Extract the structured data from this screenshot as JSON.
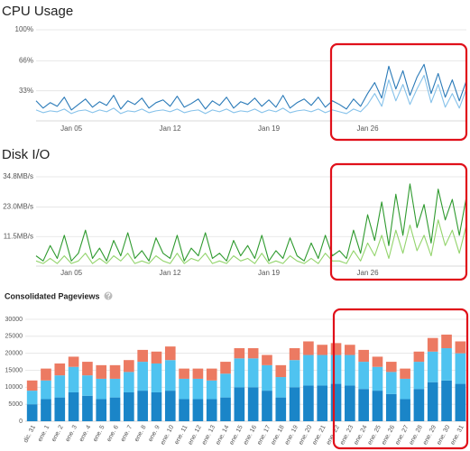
{
  "chart_data": [
    {
      "type": "line",
      "title": "CPU Usage",
      "categories": [
        null,
        null,
        null,
        null,
        null,
        "Jan 05",
        null,
        null,
        null,
        null,
        null,
        null,
        null,
        null,
        null,
        null,
        null,
        null,
        null,
        "Jan 12",
        null,
        null,
        null,
        null,
        null,
        null,
        null,
        null,
        null,
        null,
        null,
        null,
        null,
        "Jan 19",
        null,
        null,
        null,
        null,
        null,
        null,
        null,
        null,
        null,
        null,
        null,
        null,
        null,
        "Jan 26",
        null,
        null,
        null,
        null,
        null,
        null,
        null,
        null,
        null,
        null,
        null,
        null,
        null,
        null
      ],
      "series": [
        {
          "color": "#2a7ab8",
          "values": [
            22,
            14,
            20,
            16,
            26,
            12,
            18,
            24,
            15,
            21,
            17,
            28,
            13,
            22,
            18,
            25,
            14,
            20,
            23,
            16,
            27,
            15,
            19,
            24,
            13,
            22,
            17,
            26,
            14,
            21,
            18,
            25,
            16,
            23,
            15,
            28,
            14,
            20,
            24,
            17,
            26,
            15,
            22,
            18,
            13,
            24,
            16,
            30,
            42,
            25,
            60,
            35,
            55,
            28,
            48,
            62,
            30,
            52,
            26,
            45,
            22,
            44
          ]
        },
        {
          "color": "#86c2ea",
          "values": [
            12,
            9,
            11,
            10,
            13,
            8,
            11,
            12,
            9,
            12,
            10,
            14,
            8,
            11,
            10,
            13,
            9,
            11,
            12,
            10,
            13,
            9,
            11,
            12,
            8,
            12,
            10,
            13,
            9,
            11,
            10,
            13,
            9,
            12,
            10,
            14,
            9,
            11,
            12,
            10,
            13,
            9,
            12,
            10,
            8,
            13,
            10,
            18,
            30,
            16,
            45,
            22,
            40,
            18,
            35,
            50,
            20,
            40,
            15,
            30,
            14,
            35
          ]
        }
      ],
      "ylim": [
        0,
        100
      ],
      "yticks": [
        {
          "value": 33,
          "label": "33%"
        },
        {
          "value": 66,
          "label": "66%"
        },
        {
          "value": 100,
          "label": "100%"
        }
      ],
      "grid": true
    },
    {
      "type": "line",
      "title": "Disk I/O",
      "categories": [
        null,
        null,
        null,
        null,
        null,
        "Jan 05",
        null,
        null,
        null,
        null,
        null,
        null,
        null,
        null,
        null,
        null,
        null,
        null,
        null,
        "Jan 12",
        null,
        null,
        null,
        null,
        null,
        null,
        null,
        null,
        null,
        null,
        null,
        null,
        null,
        "Jan 19",
        null,
        null,
        null,
        null,
        null,
        null,
        null,
        null,
        null,
        null,
        null,
        null,
        null,
        "Jan 26",
        null,
        null,
        null,
        null,
        null,
        null,
        null,
        null,
        null,
        null,
        null,
        null,
        null,
        null
      ],
      "series": [
        {
          "color": "#2e9a2e",
          "values": [
            4,
            2,
            8,
            3,
            12,
            2,
            5,
            14,
            3,
            7,
            2,
            10,
            4,
            13,
            3,
            6,
            2,
            11,
            5,
            3,
            12,
            2,
            7,
            4,
            13,
            3,
            5,
            2,
            10,
            4,
            8,
            3,
            12,
            2,
            6,
            3,
            11,
            4,
            2,
            9,
            3,
            12,
            4,
            6,
            3,
            14,
            5,
            20,
            10,
            25,
            8,
            28,
            12,
            32,
            15,
            24,
            9,
            30,
            18,
            26,
            12,
            27
          ]
        },
        {
          "color": "#93d46c",
          "values": [
            2,
            1,
            3,
            1,
            4,
            1,
            2,
            5,
            1,
            3,
            1,
            4,
            2,
            5,
            1,
            2,
            1,
            4,
            2,
            1,
            5,
            1,
            3,
            2,
            5,
            1,
            2,
            1,
            4,
            2,
            3,
            1,
            5,
            1,
            2,
            1,
            4,
            2,
            1,
            3,
            1,
            5,
            2,
            2,
            1,
            6,
            2,
            9,
            4,
            12,
            3,
            14,
            5,
            16,
            6,
            12,
            4,
            18,
            8,
            14,
            5,
            16
          ]
        }
      ],
      "ylim": [
        0,
        34.8
      ],
      "yticks": [
        {
          "value": 11.5,
          "label": "11.5MB/s"
        },
        {
          "value": 23.0,
          "label": "23.0MB/s"
        },
        {
          "value": 34.8,
          "label": "34.8MB/s"
        }
      ],
      "grid": true
    },
    {
      "type": "stacked-bar",
      "title": "Consolidated Pageviews",
      "categories": [
        "dic. 31",
        "ene. 1",
        "ene. 2",
        "ene. 3",
        "ene. 4",
        "ene. 5",
        "ene. 6",
        "ene. 7",
        "ene. 8",
        "ene. 9",
        "ene. 10",
        "ene. 11",
        "ene. 12",
        "ene. 13",
        "ene. 14",
        "ene. 15",
        "ene. 16",
        "ene. 17",
        "ene. 18",
        "ene. 19",
        "ene. 20",
        "ene. 21",
        "ene. 22",
        "ene. 23",
        "ene. 24",
        "ene. 25",
        "ene. 26",
        "ene. 27",
        "ene. 28",
        "ene. 29",
        "ene. 30",
        "ene. 31"
      ],
      "series": [
        {
          "color": "#1a85c8",
          "values": [
            5000,
            6500,
            7000,
            8500,
            7500,
            6500,
            7000,
            8500,
            9000,
            8500,
            9000,
            6500,
            6500,
            6500,
            7000,
            10000,
            10000,
            9000,
            7000,
            10000,
            10500,
            10500,
            11000,
            10500,
            9500,
            9000,
            8000,
            6500,
            9500,
            11500,
            12000,
            11000
          ]
        },
        {
          "color": "#4fc3f0",
          "values": [
            4000,
            5500,
            6500,
            7500,
            6000,
            6000,
            5500,
            6000,
            8500,
            8500,
            9000,
            6000,
            6000,
            5500,
            7000,
            8500,
            8500,
            7500,
            6000,
            8000,
            9000,
            9000,
            8500,
            9000,
            8000,
            7000,
            6500,
            6000,
            8000,
            9000,
            9500,
            9000
          ]
        },
        {
          "color": "#ec7a62",
          "values": [
            3000,
            3500,
            3500,
            3000,
            4000,
            4000,
            4000,
            3500,
            3500,
            3500,
            4000,
            3000,
            3000,
            3500,
            3500,
            3000,
            3000,
            3000,
            3500,
            3500,
            4000,
            3000,
            3500,
            3000,
            3500,
            3000,
            3000,
            3000,
            3000,
            4000,
            4000,
            3500
          ]
        }
      ],
      "ylim": [
        0,
        30000
      ],
      "yticks": [
        0,
        5000,
        10000,
        15000,
        20000,
        25000,
        30000
      ],
      "grid": true
    }
  ]
}
